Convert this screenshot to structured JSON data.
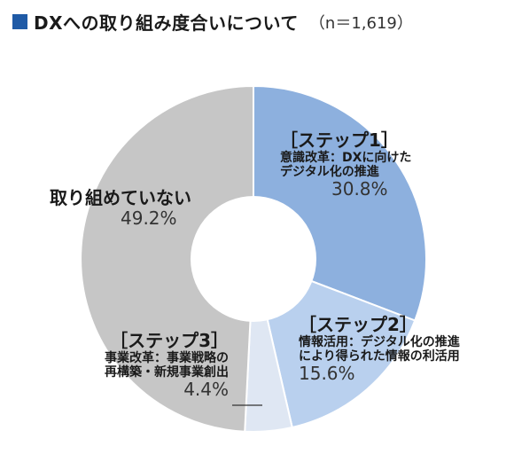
{
  "header": {
    "title": "DXへの取り組み度合いについて",
    "sample": "（n＝1,619）"
  },
  "chart_data": {
    "type": "pie",
    "title": "DXへの取り組み度合いについて",
    "subtitle": "（n＝1,619）",
    "unit": "%",
    "slices": [
      {
        "step": "［ステップ1］",
        "desc1": "意識改革：DXに向けた",
        "desc2": "デジタル化の推進",
        "value": 30.8,
        "label": "30.8%",
        "color": "#8db0de"
      },
      {
        "step": "［ステップ2］",
        "desc1": "情報活用：デジタル化の推進",
        "desc2": "により得られた情報の利活用",
        "value": 15.6,
        "label": "15.6%",
        "color": "#b9d0ee"
      },
      {
        "step": "［ステップ3］",
        "desc1": "事業改革：事業戦略の",
        "desc2": "再構築・新規事業創出",
        "value": 4.4,
        "label": "4.4%",
        "color": "#dfe7f3"
      },
      {
        "step": "",
        "desc1": "取り組めていない",
        "desc2": "",
        "value": 49.2,
        "label": "49.2%",
        "color": "#c6c6c6"
      }
    ]
  }
}
